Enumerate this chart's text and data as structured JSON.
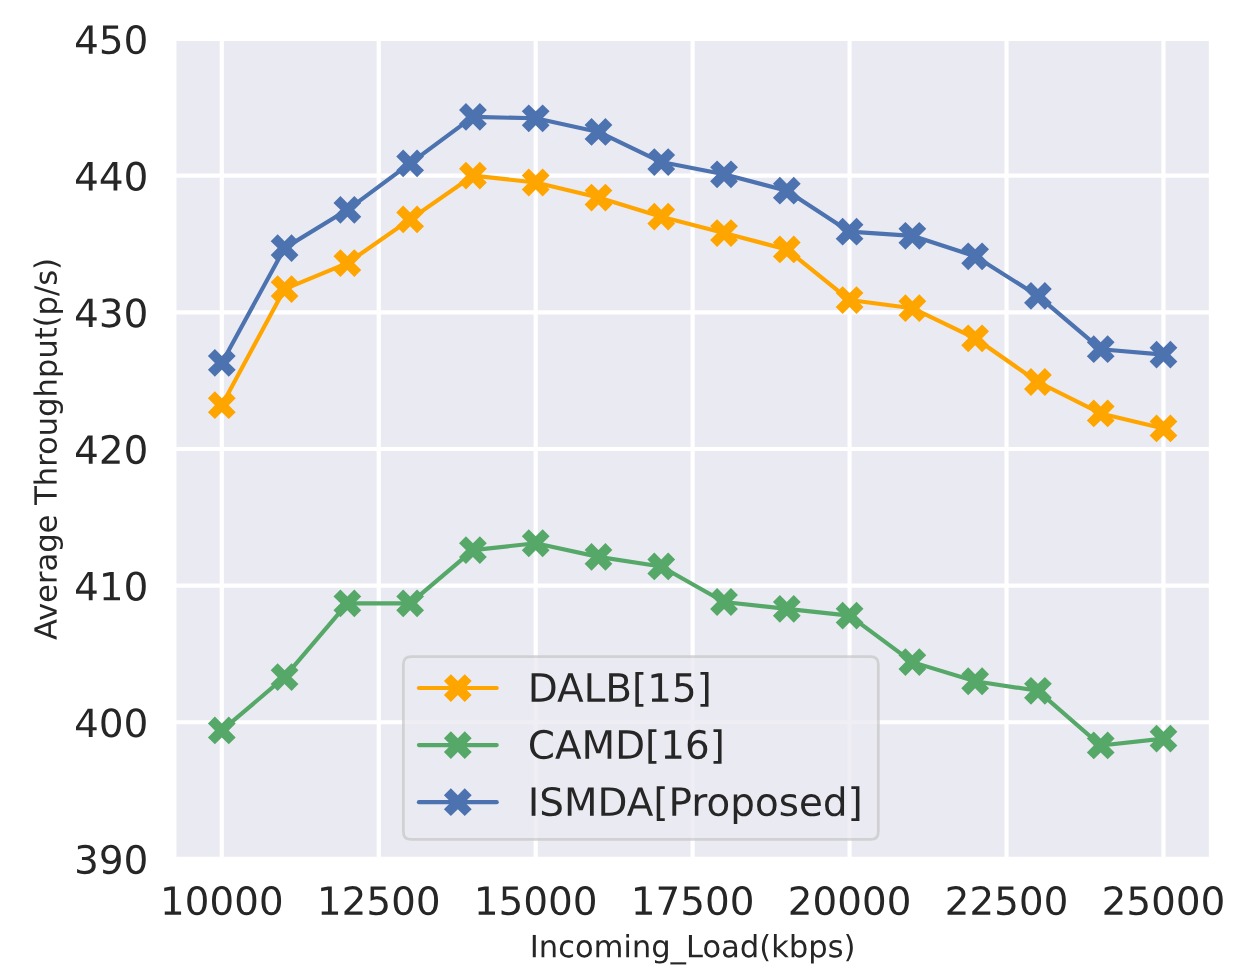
{
  "chart_data": {
    "type": "line",
    "xlabel": "Incoming_Load(kbps)",
    "ylabel": "Average Throughput(p/s)",
    "x": [
      10000,
      11000,
      12000,
      13000,
      14000,
      15000,
      16000,
      17000,
      18000,
      19000,
      20000,
      21000,
      22000,
      23000,
      24000,
      25000
    ],
    "series": [
      {
        "name": "DALB[15]",
        "color": "#ffa500",
        "values": [
          423.2,
          431.7,
          433.6,
          436.8,
          440.0,
          439.5,
          438.4,
          437.0,
          435.8,
          434.6,
          430.9,
          430.3,
          428.1,
          424.9,
          422.6,
          421.5
        ]
      },
      {
        "name": "CAMD[16]",
        "color": "#55a868",
        "values": [
          399.4,
          403.3,
          408.7,
          408.7,
          412.6,
          413.1,
          412.1,
          411.4,
          408.8,
          408.3,
          407.8,
          404.4,
          403.0,
          402.3,
          398.3,
          398.8
        ]
      },
      {
        "name": "ISMDA[Proposed]",
        "color": "#4c72b0",
        "values": [
          426.3,
          434.7,
          437.5,
          440.9,
          444.3,
          444.2,
          443.2,
          441.0,
          440.1,
          438.9,
          435.9,
          435.6,
          434.1,
          431.2,
          427.3,
          426.9
        ]
      }
    ],
    "xlim": [
      9250,
      25750
    ],
    "xticks": [
      10000,
      12500,
      15000,
      17500,
      20000,
      22500,
      25000
    ],
    "ylim": [
      390,
      450
    ],
    "yticks": [
      390,
      400,
      410,
      420,
      430,
      440,
      450
    ],
    "grid": true,
    "legend": "bottom",
    "marker": "cross",
    "line_style": "solid"
  }
}
